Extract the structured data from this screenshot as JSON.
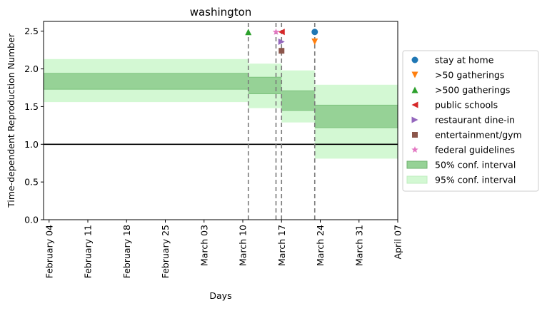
{
  "chart_data": {
    "type": "line",
    "title": "washington",
    "xlabel": "Days",
    "ylabel": "Time-dependent Reproduction Number",
    "xlim": [
      "2020-02-03",
      "2020-04-07"
    ],
    "ylim": [
      0,
      2.63
    ],
    "yticks": [
      0.0,
      0.5,
      1.0,
      1.5,
      2.0,
      2.5
    ],
    "ytick_labels": [
      "0.0",
      "0.5",
      "1.0",
      "1.5",
      "2.0",
      "2.5"
    ],
    "xticks": [
      "2020-02-04",
      "2020-02-11",
      "2020-02-18",
      "2020-02-25",
      "2020-03-03",
      "2020-03-10",
      "2020-03-17",
      "2020-03-24",
      "2020-03-31",
      "2020-04-07"
    ],
    "xtick_labels": [
      "February 04",
      "February 11",
      "February 18",
      "February 25",
      "March 03",
      "March 10",
      "March 17",
      "March 24",
      "March 31",
      "April 07"
    ],
    "reference_line": {
      "y": 1.0,
      "color": "#000000"
    },
    "intervals": [
      {
        "start": "2020-02-03",
        "end": "2020-03-11",
        "ci50": [
          1.73,
          1.94
        ],
        "ci95": [
          1.56,
          2.13
        ]
      },
      {
        "start": "2020-03-11",
        "end": "2020-03-16",
        "ci50": [
          1.67,
          1.89
        ],
        "ci95": [
          1.48,
          2.07
        ]
      },
      {
        "start": "2020-03-16",
        "end": "2020-03-17",
        "ci50": [
          1.67,
          1.89
        ],
        "ci95": [
          1.48,
          2.07
        ]
      },
      {
        "start": "2020-03-17",
        "end": "2020-03-23",
        "ci50": [
          1.45,
          1.71
        ],
        "ci95": [
          1.29,
          1.98
        ]
      },
      {
        "start": "2020-03-23",
        "end": "2020-04-07",
        "ci50": [
          1.22,
          1.52
        ],
        "ci95": [
          0.81,
          1.79
        ]
      }
    ],
    "interventions": [
      {
        "name": "stay at home",
        "date": "2020-03-23",
        "y": 2.49,
        "marker": "circle",
        "color": "#1f77b4"
      },
      {
        "name": ">50 gatherings",
        "date": "2020-03-23",
        "y": 2.36,
        "marker": "triangle-down",
        "color": "#ff7f0e"
      },
      {
        "name": ">500 gatherings",
        "date": "2020-03-11",
        "y": 2.49,
        "marker": "triangle-up",
        "color": "#2ca02c"
      },
      {
        "name": "public schools",
        "date": "2020-03-17",
        "y": 2.49,
        "marker": "triangle-left",
        "color": "#d62728"
      },
      {
        "name": "restaurant dine-in",
        "date": "2020-03-17",
        "y": 2.36,
        "marker": "triangle-right",
        "color": "#9467bd"
      },
      {
        "name": "entertainment/gym",
        "date": "2020-03-17",
        "y": 2.24,
        "marker": "square",
        "color": "#8c564b"
      },
      {
        "name": "federal guidelines",
        "date": "2020-03-16",
        "y": 2.49,
        "marker": "star",
        "color": "#e377c2"
      }
    ],
    "vlines": [
      "2020-03-11",
      "2020-03-16",
      "2020-03-17",
      "2020-03-23"
    ],
    "band_legend": [
      {
        "name": "50% conf. interval",
        "color": "#96d296"
      },
      {
        "name": "95% conf. interval",
        "color": "#d3f8d3"
      }
    ],
    "legend_position": "center-right outside",
    "grid": false
  }
}
